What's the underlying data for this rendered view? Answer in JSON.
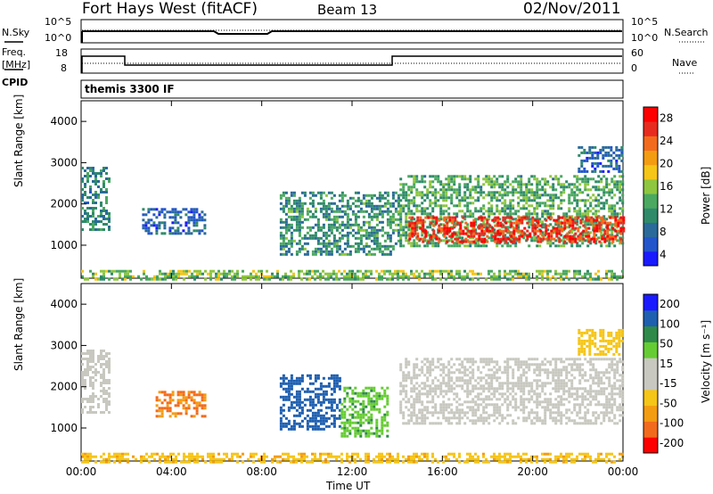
{
  "header": {
    "title": "Fort Hays West (fitACF)",
    "beam": "Beam 13",
    "date": "02/Nov/2011"
  },
  "strips": {
    "nsky_label": "N.Sky",
    "nsky_ticks": [
      "10^5",
      "10^0"
    ],
    "nsearch_label": "N.Search",
    "nsearch_ticks": [
      "10^5",
      "10^0"
    ],
    "freq_label_1": "Freq.",
    "freq_label_2": "[MHz]",
    "freq_ticks": [
      "18",
      "8"
    ],
    "nave_label": "Nave",
    "nave_ticks": [
      "60",
      "0"
    ],
    "cpid_label": "CPID",
    "cpid_text": "themis 3300 IF"
  },
  "colors": {
    "axis": "#000000",
    "power_scale": [
      "#1a1aff",
      "#2255cc",
      "#2a6a9a",
      "#2f8a6a",
      "#4aa860",
      "#8ec63f",
      "#f5c518",
      "#f39c12",
      "#f26b1d",
      "#e82b1f",
      "#ff0000"
    ],
    "velocity_scale": [
      "#ff0000",
      "#f26b1d",
      "#f39c12",
      "#f5c518",
      "#c8c8c0",
      "#c8c8c0",
      "#66cc33",
      "#2f8a4a",
      "#1f5fb0",
      "#1a1aff"
    ],
    "ground_scatter": "#c8c8c0"
  },
  "chart_data": [
    {
      "type": "heatmap",
      "name": "power",
      "ylabel": "Slant Range [km]",
      "yticks": [
        "4000",
        "3000",
        "2000",
        "1000"
      ],
      "ylim": [
        200,
        4500
      ],
      "xlim": [
        0,
        24
      ],
      "colorbar_label": "Power [dB]",
      "colorbar_ticks": [
        "28",
        "24",
        "20",
        "16",
        "12",
        "8",
        "4"
      ],
      "colorbar_range": [
        0,
        30
      ],
      "regions": [
        {
          "t0": 0.0,
          "t1": 1.3,
          "r0": 1400,
          "r1": 2900,
          "level": 9
        },
        {
          "t0": 2.7,
          "t1": 5.5,
          "r0": 1300,
          "r1": 1900,
          "level": 6
        },
        {
          "t0": 8.8,
          "t1": 14.1,
          "r0": 800,
          "r1": 2300,
          "level": 10
        },
        {
          "t0": 14.1,
          "t1": 24.0,
          "r0": 1000,
          "r1": 2700,
          "level": 12
        },
        {
          "t0": 14.5,
          "t1": 24.0,
          "r0": 1100,
          "r1": 1700,
          "level": 26
        },
        {
          "t0": 22.0,
          "t1": 24.0,
          "r0": 2800,
          "r1": 3400,
          "level": 6
        },
        {
          "t0": 0.0,
          "t1": 24.0,
          "r0": 200,
          "r1": 400,
          "level": 14
        }
      ]
    },
    {
      "type": "heatmap",
      "name": "velocity",
      "ylabel": "Slant Range [km]",
      "yticks": [
        "4000",
        "3000",
        "2000",
        "1000"
      ],
      "ylim": [
        200,
        4500
      ],
      "xlim": [
        0,
        24
      ],
      "xticks": [
        "00:00",
        "04:00",
        "08:00",
        "12:00",
        "16:00",
        "20:00",
        "00:00"
      ],
      "xlabel": "Time UT",
      "colorbar_label": "Velocity [m s⁻¹]",
      "colorbar_ticks": [
        "200",
        "100",
        "50",
        "15",
        "-15",
        "-50",
        "-100",
        "-200"
      ],
      "regions": [
        {
          "t0": 0.0,
          "t1": 1.3,
          "r0": 1400,
          "r1": 2900,
          "velocity": 0
        },
        {
          "t0": 3.3,
          "t1": 5.5,
          "r0": 1300,
          "r1": 1900,
          "velocity": -100
        },
        {
          "t0": 8.8,
          "t1": 11.5,
          "r0": 1000,
          "r1": 2300,
          "velocity": 150
        },
        {
          "t0": 11.5,
          "t1": 13.6,
          "r0": 800,
          "r1": 2000,
          "velocity": 40
        },
        {
          "t0": 14.1,
          "t1": 24.0,
          "r0": 1100,
          "r1": 2700,
          "velocity": 0
        },
        {
          "t0": 22.0,
          "t1": 24.0,
          "r0": 2800,
          "r1": 3400,
          "velocity": -30
        },
        {
          "t0": 0.0,
          "t1": 24.0,
          "r0": 200,
          "r1": 400,
          "velocity": -40
        }
      ]
    }
  ]
}
